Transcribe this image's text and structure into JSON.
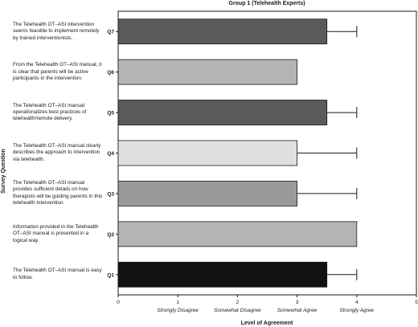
{
  "chart_data": {
    "type": "bar",
    "orientation": "horizontal",
    "title": "Group 1 (Telehealth Experts)",
    "xlabel": "Level of Agreement",
    "ylabel": "Survey Question",
    "xlim": [
      0,
      5
    ],
    "x_ticks": [
      0,
      1,
      2,
      3,
      4,
      5
    ],
    "x_tick_descriptions": [
      "",
      "Strongly Disagree",
      "Somewhat Disagree",
      "Somewhat Agree",
      "Strongly Agree",
      ""
    ],
    "grid": false,
    "categories": [
      "Q7",
      "Q6",
      "Q5",
      "Q4",
      "Q3",
      "Q2",
      "Q1"
    ],
    "values": [
      3.5,
      3.0,
      3.5,
      3.0,
      3.0,
      4.0,
      3.5
    ],
    "error_upper": [
      4.0,
      3.0,
      4.0,
      4.0,
      4.0,
      4.0,
      4.0
    ],
    "bar_colors": [
      "#5a5a5a",
      "#b4b4b4",
      "#5a5a5a",
      "#e0e0e0",
      "#9a9a9a",
      "#b4b4b4",
      "#111111"
    ],
    "questions": [
      "The Telehealth OT–ASI intervention seems feasible to implement remotely by trained interventionists.",
      "From the Telehealth OT–ASI manual, it is clear that parents will be active participants in the intervention.",
      "The Telehealth OT–ASI manual operationalizes best practices of telehealth/remote delivery.",
      "The Telehealth OT–ASI manual clearly describes the approach to intervention via telehealth.",
      "The Telehealth OT–ASI manual provides sufficient details on how therapists will be guiding parents in this telehealth intervention.",
      "Information provided in the Telehealth OT–ASI manual is presented in a logical way.",
      "The Telehealth OT–ASI manual is easy to follow."
    ]
  }
}
